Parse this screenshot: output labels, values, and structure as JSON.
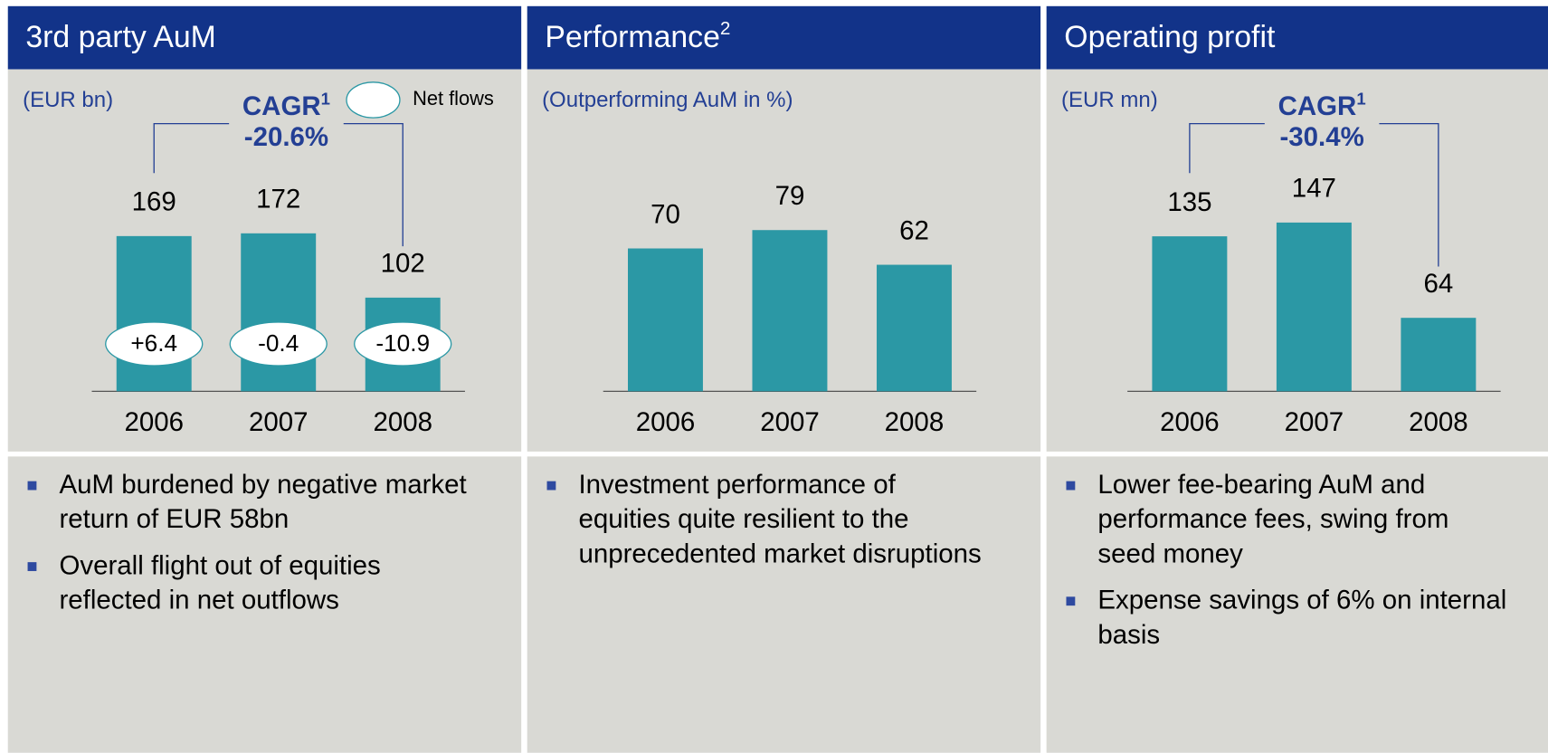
{
  "chart_data": [
    {
      "type": "bar",
      "title": "3rd party AuM",
      "subtitle": "(EUR bn)",
      "categories": [
        "2006",
        "2007",
        "2008"
      ],
      "values": [
        169,
        172,
        102
      ],
      "color": "#2b98a5",
      "ylim": [
        0,
        200
      ],
      "cagr": {
        "label": "CAGR",
        "sup": "1",
        "value": -20.6,
        "value_label": "-20.6%"
      },
      "net_flows": {
        "name": "Net flows",
        "values": [
          6.4,
          -0.4,
          -10.9
        ],
        "value_labels": [
          "+6.4",
          "-0.4",
          "-10.9"
        ]
      },
      "bullets": [
        [
          "AuM burdened by negative market",
          "return of EUR 58bn"
        ],
        [
          "Overall flight out of equities",
          "reflected in net outflows"
        ]
      ]
    },
    {
      "type": "bar",
      "title": "Performance",
      "title_sup": "2",
      "subtitle": "(Outperforming AuM in %)",
      "categories": [
        "2006",
        "2007",
        "2008"
      ],
      "values": [
        70,
        79,
        62
      ],
      "color": "#2b98a5",
      "ylim": [
        0,
        90
      ],
      "bullets": [
        [
          "Investment performance of",
          "equities quite resilient to the",
          "unprecedented market disruptions"
        ]
      ]
    },
    {
      "type": "bar",
      "title": "Operating profit",
      "subtitle": "(EUR mn)",
      "categories": [
        "2006",
        "2007",
        "2008"
      ],
      "values": [
        135,
        147,
        64
      ],
      "color": "#2b98a5",
      "ylim": [
        0,
        160
      ],
      "cagr": {
        "label": "CAGR",
        "sup": "1",
        "value": -30.4,
        "value_label": "-30.4%"
      },
      "bullets": [
        [
          "Lower fee-bearing AuM and",
          "performance fees, swing from",
          "seed money"
        ],
        [
          "Expense savings of 6% on internal",
          "basis"
        ]
      ]
    }
  ]
}
